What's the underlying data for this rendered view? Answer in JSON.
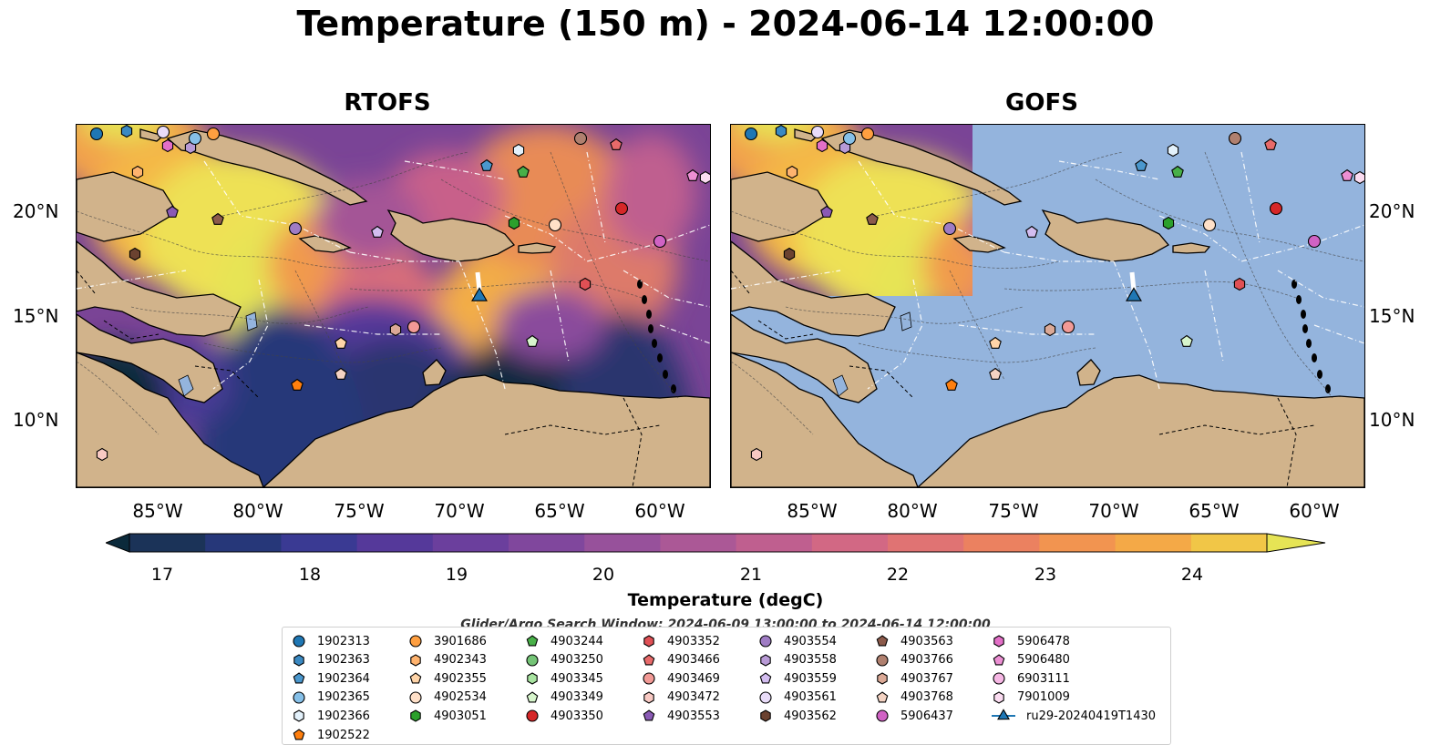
{
  "title": "Temperature (150 m) - 2024-06-14 12:00:00",
  "panels": [
    {
      "title": "RTOFS",
      "field": "model"
    },
    {
      "title": "GOFS",
      "field": "model-partial"
    }
  ],
  "lat_labels": [
    "20°N",
    "15°N",
    "10°N"
  ],
  "lon_labels": [
    "85°W",
    "80°W",
    "75°W",
    "70°W",
    "65°W",
    "60°W"
  ],
  "colorbar": {
    "label": "Temperature (degC)",
    "ticks": [
      "17",
      "18",
      "19",
      "20",
      "21",
      "22",
      "23",
      "24"
    ],
    "min": 16.75,
    "max": 24.5,
    "step": 0.5,
    "colors": [
      "#0b2a3b",
      "#1b3358",
      "#263779",
      "#3a3a93",
      "#55399a",
      "#6b3f9d",
      "#80479d",
      "#97519b",
      "#ab5896",
      "#bf5f8f",
      "#d26884",
      "#e07373",
      "#eb8160",
      "#f29450",
      "#f4a947",
      "#f1c647",
      "#e6e455"
    ]
  },
  "search_window": "Glider/Argo Search Window: 2024-06-09 13:00:00 to 2024-06-14 12:00:00",
  "legend": [
    {
      "label": "1902313",
      "shape": "circle",
      "color": "#1f77b4"
    },
    {
      "label": "1902363",
      "shape": "hexagon",
      "color": "#3a89c2"
    },
    {
      "label": "1902364",
      "shape": "pentagon",
      "color": "#4a97cd"
    },
    {
      "label": "1902365",
      "shape": "circle",
      "color": "#86c0e8"
    },
    {
      "label": "1902366",
      "shape": "hexagon",
      "color": "#e3f1fb"
    },
    {
      "label": "1902522",
      "shape": "pentagon",
      "color": "#ff7f0e"
    },
    {
      "label": "3901686",
      "shape": "circle",
      "color": "#ff9f40"
    },
    {
      "label": "4902343",
      "shape": "hexagon",
      "color": "#ffb36e"
    },
    {
      "label": "4902355",
      "shape": "pentagon",
      "color": "#ffd4a8"
    },
    {
      "label": "4902534",
      "shape": "circle",
      "color": "#ffe0c8"
    },
    {
      "label": "4903051",
      "shape": "hexagon",
      "color": "#2ca02c"
    },
    {
      "label": "4903244",
      "shape": "pentagon",
      "color": "#48b048"
    },
    {
      "label": "4903250",
      "shape": "circle",
      "color": "#74c476"
    },
    {
      "label": "4903345",
      "shape": "hexagon",
      "color": "#a8e3a0"
    },
    {
      "label": "4903349",
      "shape": "pentagon",
      "color": "#d7f5cc"
    },
    {
      "label": "4903350",
      "shape": "circle",
      "color": "#d62728"
    },
    {
      "label": "4903352",
      "shape": "hexagon",
      "color": "#e05055"
    },
    {
      "label": "4903466",
      "shape": "pentagon",
      "color": "#e86a6a"
    },
    {
      "label": "4903469",
      "shape": "circle",
      "color": "#f29a96"
    },
    {
      "label": "4903472",
      "shape": "hexagon",
      "color": "#f8c9c3"
    },
    {
      "label": "4903553",
      "shape": "pentagon",
      "color": "#8a5ab5"
    },
    {
      "label": "4903554",
      "shape": "circle",
      "color": "#9f7cc4"
    },
    {
      "label": "4903558",
      "shape": "hexagon",
      "color": "#b89ad6"
    },
    {
      "label": "4903559",
      "shape": "pentagon",
      "color": "#d3bdf0"
    },
    {
      "label": "4903561",
      "shape": "circle",
      "color": "#e9dcf9"
    },
    {
      "label": "4903562",
      "shape": "hexagon",
      "color": "#6b4230"
    },
    {
      "label": "4903563",
      "shape": "pentagon",
      "color": "#8c5a4b"
    },
    {
      "label": "4903766",
      "shape": "circle",
      "color": "#b0806f"
    },
    {
      "label": "4903767",
      "shape": "hexagon",
      "color": "#dba996"
    },
    {
      "label": "4903768",
      "shape": "pentagon",
      "color": "#f4d3c3"
    },
    {
      "label": "5906437",
      "shape": "circle",
      "color": "#d062c4"
    },
    {
      "label": "5906478",
      "shape": "hexagon",
      "color": "#e36fc7"
    },
    {
      "label": "5906480",
      "shape": "pentagon",
      "color": "#ec8fd3"
    },
    {
      "label": "6903111",
      "shape": "circle",
      "color": "#f6b7e4"
    },
    {
      "label": "7901009",
      "shape": "hexagon",
      "color": "#fbdcf1"
    },
    {
      "label": "ru29-20240419T1430",
      "shape": "triangle-line",
      "color": "#1f77b4"
    }
  ]
}
